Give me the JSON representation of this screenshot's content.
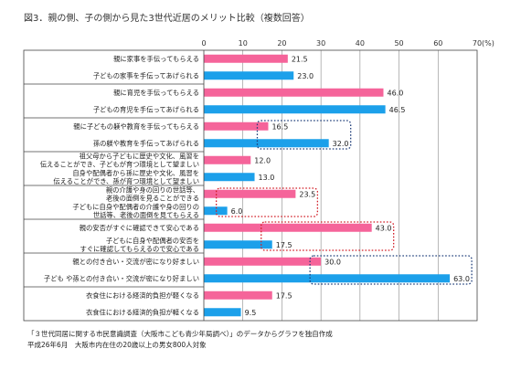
{
  "chart_data": {
    "type": "bar",
    "orientation": "horizontal",
    "title": "図3．親の側、子の側から見た3世代近居のメリット比較（複数回答）",
    "xlim": [
      0,
      70
    ],
    "xticks": [
      "0",
      "10",
      "20",
      "30",
      "40",
      "50",
      "60",
      "70"
    ],
    "unit": "(%)",
    "grid": true,
    "colors": {
      "parent_side": "#f5649a",
      "child_side": "#1ca0ea",
      "highlight_blue": "#1f3e7a",
      "highlight_red": "#d21d26"
    },
    "categories": [
      {
        "lines": [
          "親に家事を手伝ってもらえる"
        ],
        "value": 21.5,
        "label": "21.5",
        "side": "parent"
      },
      {
        "lines": [
          "子どもの家事を手伝ってあげられる"
        ],
        "value": 23.0,
        "label": "23.0",
        "side": "child"
      },
      {
        "lines": [
          "親に育児を手伝ってもらえる"
        ],
        "value": 46.0,
        "label": "46.0",
        "side": "parent"
      },
      {
        "lines": [
          "子どもの育児を手伝ってあげられる"
        ],
        "value": 46.5,
        "label": "46.5",
        "side": "child"
      },
      {
        "lines": [
          "親に子どもの躾や教育を手伝ってもらえる"
        ],
        "value": 16.5,
        "label": "16.5",
        "side": "parent"
      },
      {
        "lines": [
          "孫の躾や教育を手伝ってあげられる"
        ],
        "value": 32.0,
        "label": "32.0",
        "side": "child"
      },
      {
        "lines": [
          "祖父母から子どもに歴史や文化、風習を",
          "伝えることができ、子どもが育つ環境として望ましい"
        ],
        "value": 12.0,
        "label": "12.0",
        "side": "parent"
      },
      {
        "lines": [
          "自身や配偶者から孫に歴史や文化、風習を",
          "伝えることができ、孫が育つ環境として望ましい"
        ],
        "value": 13.0,
        "label": "13.0",
        "side": "child"
      },
      {
        "lines": [
          "親の介護や身の回りの世話等、",
          "老後の面倒を見ることができる"
        ],
        "value": 23.5,
        "label": "23.5",
        "side": "parent"
      },
      {
        "lines": [
          "子どもに自身や配偶者の介護や身の回りの",
          "世話等、老後の面倒を見てもらえる"
        ],
        "value": 6.0,
        "label": "6.0",
        "side": "child"
      },
      {
        "lines": [
          "親の安否がすぐに確認できて安心である"
        ],
        "value": 43.0,
        "label": "43.0",
        "side": "parent"
      },
      {
        "lines": [
          "子どもに自身や配偶者の安否を",
          "すぐに確認してもらえるので安心である"
        ],
        "value": 17.5,
        "label": "17.5",
        "side": "child"
      },
      {
        "lines": [
          "親との付き合い・交流が密になり好ましい"
        ],
        "value": 30.0,
        "label": "30.0",
        "side": "parent"
      },
      {
        "lines": [
          "子ども や孫との付き合い・交流が密になり好ましい"
        ],
        "value": 63.0,
        "label": "63.0",
        "side": "child"
      },
      {
        "lines": [
          "衣食住における経済的負担が軽くなる"
        ],
        "value": 17.5,
        "label": "17.5",
        "side": "parent"
      },
      {
        "lines": [
          "衣食住における経済的負担が軽くなる"
        ],
        "value": 9.5,
        "label": "9.5",
        "side": "child"
      }
    ],
    "highlights": [
      {
        "pair": 2,
        "style": "blue"
      },
      {
        "pair": 4,
        "style": "red"
      },
      {
        "pair": 5,
        "style": "red"
      },
      {
        "pair": 6,
        "style": "blue"
      }
    ],
    "notes": [
      "「３世代同居に関する市民意識調査（大阪市こども青少年局調べ）」のデータからグラフを独自作成",
      "平成26年6月　大阪市内在住の20歳以上の男女800人対象"
    ]
  }
}
